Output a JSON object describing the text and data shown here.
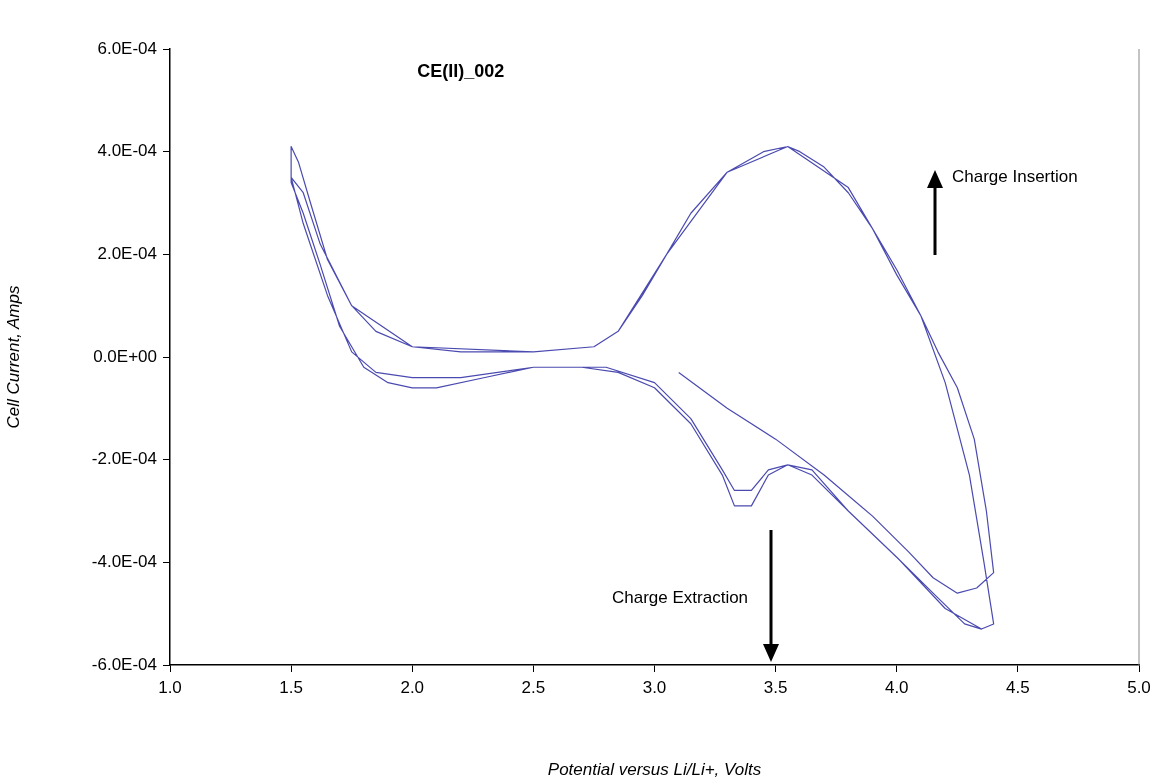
{
  "chart_data": {
    "type": "line",
    "title": "CE(II)_002",
    "xlabel": "Potential versus Li/Li+, Volts",
    "ylabel": "Cell Current, Amps",
    "annotations": [
      "Charge Insertion",
      "Charge Extraction"
    ],
    "xlim": [
      1,
      5
    ],
    "xticks": [
      {
        "value": 1,
        "label": "1.0"
      },
      {
        "value": 1.5,
        "label": "1.5"
      },
      {
        "value": 2,
        "label": "2.0"
      },
      {
        "value": 2.5,
        "label": "2.5"
      },
      {
        "value": 3,
        "label": "3.0"
      },
      {
        "value": 3.5,
        "label": "3.5"
      },
      {
        "value": 4,
        "label": "4.0"
      },
      {
        "value": 4.5,
        "label": "4.5"
      },
      {
        "value": 5,
        "label": "5.0"
      }
    ],
    "ylim": [
      -0.0006,
      0.0006
    ],
    "yticks": [
      {
        "value": -0.0006,
        "label": "-6.0E-04"
      },
      {
        "value": -0.0004,
        "label": "-4.0E-04"
      },
      {
        "value": -0.0002,
        "label": "-2.0E-04"
      },
      {
        "value": 0,
        "label": "0.0E+00"
      },
      {
        "value": 0.0002,
        "label": "2.0E-04"
      },
      {
        "value": 0.0004,
        "label": "4.0E-04"
      },
      {
        "value": 0.0006,
        "label": "6.0E-04"
      }
    ],
    "grid": false,
    "legend": false,
    "marker": "none",
    "line_style": "solid",
    "series": [
      {
        "color": "#4a4ab0",
        "x": [
          3.1,
          3.3,
          3.5,
          3.7,
          3.9,
          4.05,
          4.15,
          4.25,
          4.33,
          4.4,
          4.37,
          4.32,
          4.25,
          4.17,
          4.1,
          4.0,
          3.9,
          3.8,
          3.7,
          3.6,
          3.55,
          3.45,
          3.3,
          3.15,
          3.05,
          2.95,
          2.85,
          2.75,
          2.5,
          2.2,
          2.0,
          1.85,
          1.75,
          1.65,
          1.58,
          1.53,
          1.5,
          1.5,
          1.55,
          1.62,
          1.7,
          1.8,
          1.9,
          2.0,
          2.1,
          2.3,
          2.5,
          2.7,
          2.85,
          3.0,
          3.15,
          3.28,
          3.33,
          3.4,
          3.47,
          3.55,
          3.65,
          3.8,
          4.0,
          4.15,
          4.28,
          4.35,
          4.4,
          4.36,
          4.3,
          4.2,
          4.1,
          4.0,
          3.8,
          3.55,
          3.3,
          3.05,
          2.85,
          2.75,
          2.5,
          2.0,
          1.75,
          1.62,
          1.55,
          1.5,
          1.5,
          1.55,
          1.65,
          1.75,
          1.85,
          2.0,
          2.2,
          2.5,
          2.8,
          3.0,
          3.15,
          3.28,
          3.33,
          3.4,
          3.47,
          3.55,
          3.65,
          3.8,
          4.0,
          4.2,
          4.35,
          4.4
        ],
        "values": [
          -3e-05,
          -0.0001,
          -0.00016,
          -0.00023,
          -0.00031,
          -0.00038,
          -0.00043,
          -0.00046,
          -0.00045,
          -0.00042,
          -0.0003,
          -0.00016,
          -6e-05,
          1e-05,
          8e-05,
          0.00016,
          0.00025,
          0.00032,
          0.00037,
          0.0004,
          0.00041,
          0.0004,
          0.00036,
          0.00028,
          0.0002,
          0.00012,
          5e-05,
          2e-05,
          1e-05,
          1e-05,
          2e-05,
          5e-05,
          0.0001,
          0.00019,
          0.0003,
          0.00038,
          0.00041,
          0.00034,
          0.00028,
          0.00018,
          6e-05,
          -2e-05,
          -5e-05,
          -6e-05,
          -6e-05,
          -4e-05,
          -2e-05,
          -2e-05,
          -3e-05,
          -6e-05,
          -0.00013,
          -0.00023,
          -0.00029,
          -0.00029,
          -0.00023,
          -0.00021,
          -0.00023,
          -0.0003,
          -0.00039,
          -0.00046,
          -0.00052,
          -0.00053,
          -0.00052,
          -0.0004,
          -0.00023,
          -5e-05,
          8e-05,
          0.00017,
          0.00033,
          0.00041,
          0.00036,
          0.0002,
          5e-05,
          2e-05,
          1e-05,
          2e-05,
          0.0001,
          0.00022,
          0.00032,
          0.00035,
          0.00035,
          0.00026,
          0.00012,
          1e-05,
          -3e-05,
          -4e-05,
          -4e-05,
          -2e-05,
          -2e-05,
          -5e-05,
          -0.00012,
          -0.00022,
          -0.00026,
          -0.00026,
          -0.00022,
          -0.00021,
          -0.00022,
          -0.0003,
          -0.00039,
          -0.00049,
          -0.00053,
          -0.00052
        ]
      }
    ]
  }
}
